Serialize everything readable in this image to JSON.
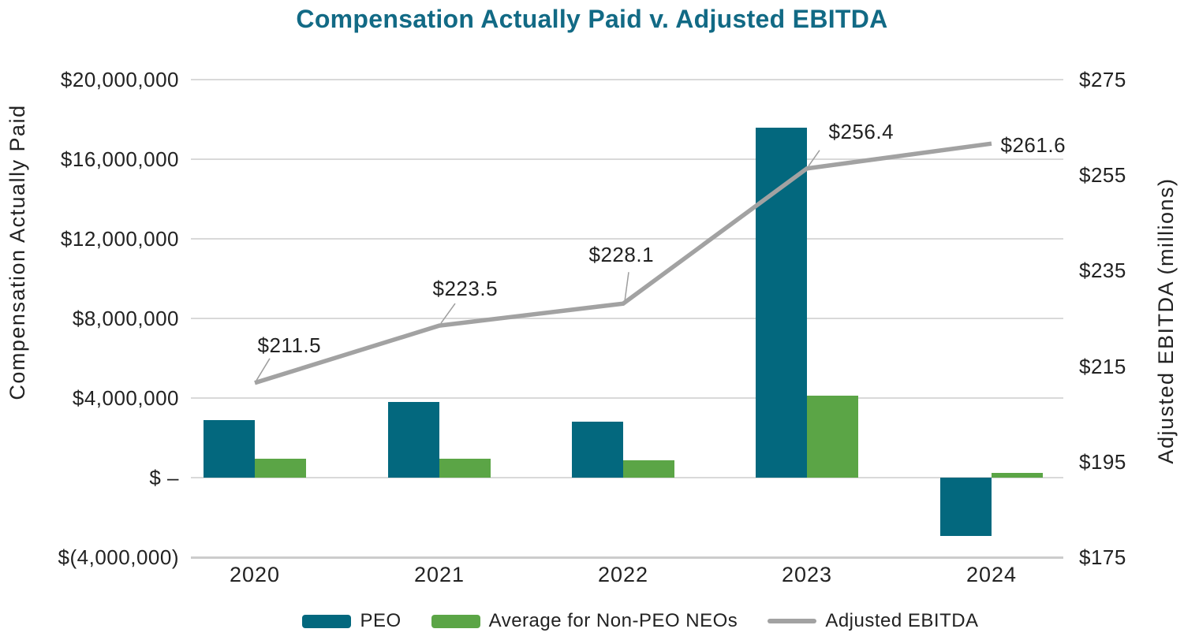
{
  "title": "Compensation Actually Paid v. Adjusted EBITDA",
  "chart_data": {
    "type": "bar+line",
    "categories": [
      "2020",
      "2021",
      "2022",
      "2023",
      "2024"
    ],
    "series": [
      {
        "name": "PEO",
        "type": "bar",
        "axis": "left",
        "color": "#03687e",
        "values": [
          2900000,
          3800000,
          2800000,
          17600000,
          -2950000
        ]
      },
      {
        "name": "Average for Non-PEO NEOs",
        "type": "bar",
        "axis": "left",
        "color": "#5ba546",
        "values": [
          950000,
          950000,
          870000,
          4100000,
          240000
        ]
      },
      {
        "name": "Adjusted EBITDA",
        "type": "line",
        "axis": "right",
        "color": "#a2a2a2",
        "values": [
          211.5,
          223.5,
          228.1,
          256.4,
          261.6
        ],
        "point_labels": [
          "$211.5",
          "$223.5",
          "$228.1",
          "$256.4",
          "$261.6"
        ]
      }
    ],
    "left_axis": {
      "title": "Compensation Actually Paid",
      "min": -4000000,
      "max": 20000000,
      "tick_step": 4000000,
      "tick_labels": [
        "$20,000,000",
        "$16,000,000",
        "$12,000,000",
        "$8,000,000",
        "$4,000,000",
        "$ –",
        "$(4,000,000)"
      ]
    },
    "right_axis": {
      "title": "Adjusted EBITDA (millions)",
      "min": 175,
      "max": 275,
      "tick_step": 20,
      "tick_labels": [
        "$275",
        "$255",
        "$235",
        "$215",
        "$195",
        "$175"
      ]
    },
    "grid": "horizontal-only",
    "legend_position": "bottom"
  },
  "legend": {
    "items": [
      {
        "label": "PEO",
        "color": "#03687e",
        "swatch": "bar"
      },
      {
        "label": "Average for Non-PEO NEOs",
        "color": "#5ba546",
        "swatch": "bar"
      },
      {
        "label": "Adjusted EBITDA",
        "color": "#a2a2a2",
        "swatch": "line"
      }
    ]
  },
  "colors": {
    "title": "#126a85",
    "peo_bar": "#03687e",
    "neo_bar": "#5ba546",
    "ebitda_line": "#a2a2a2",
    "gridline": "#d9d9d9",
    "text": "#222222",
    "leader_line": "#9e9e9e"
  }
}
